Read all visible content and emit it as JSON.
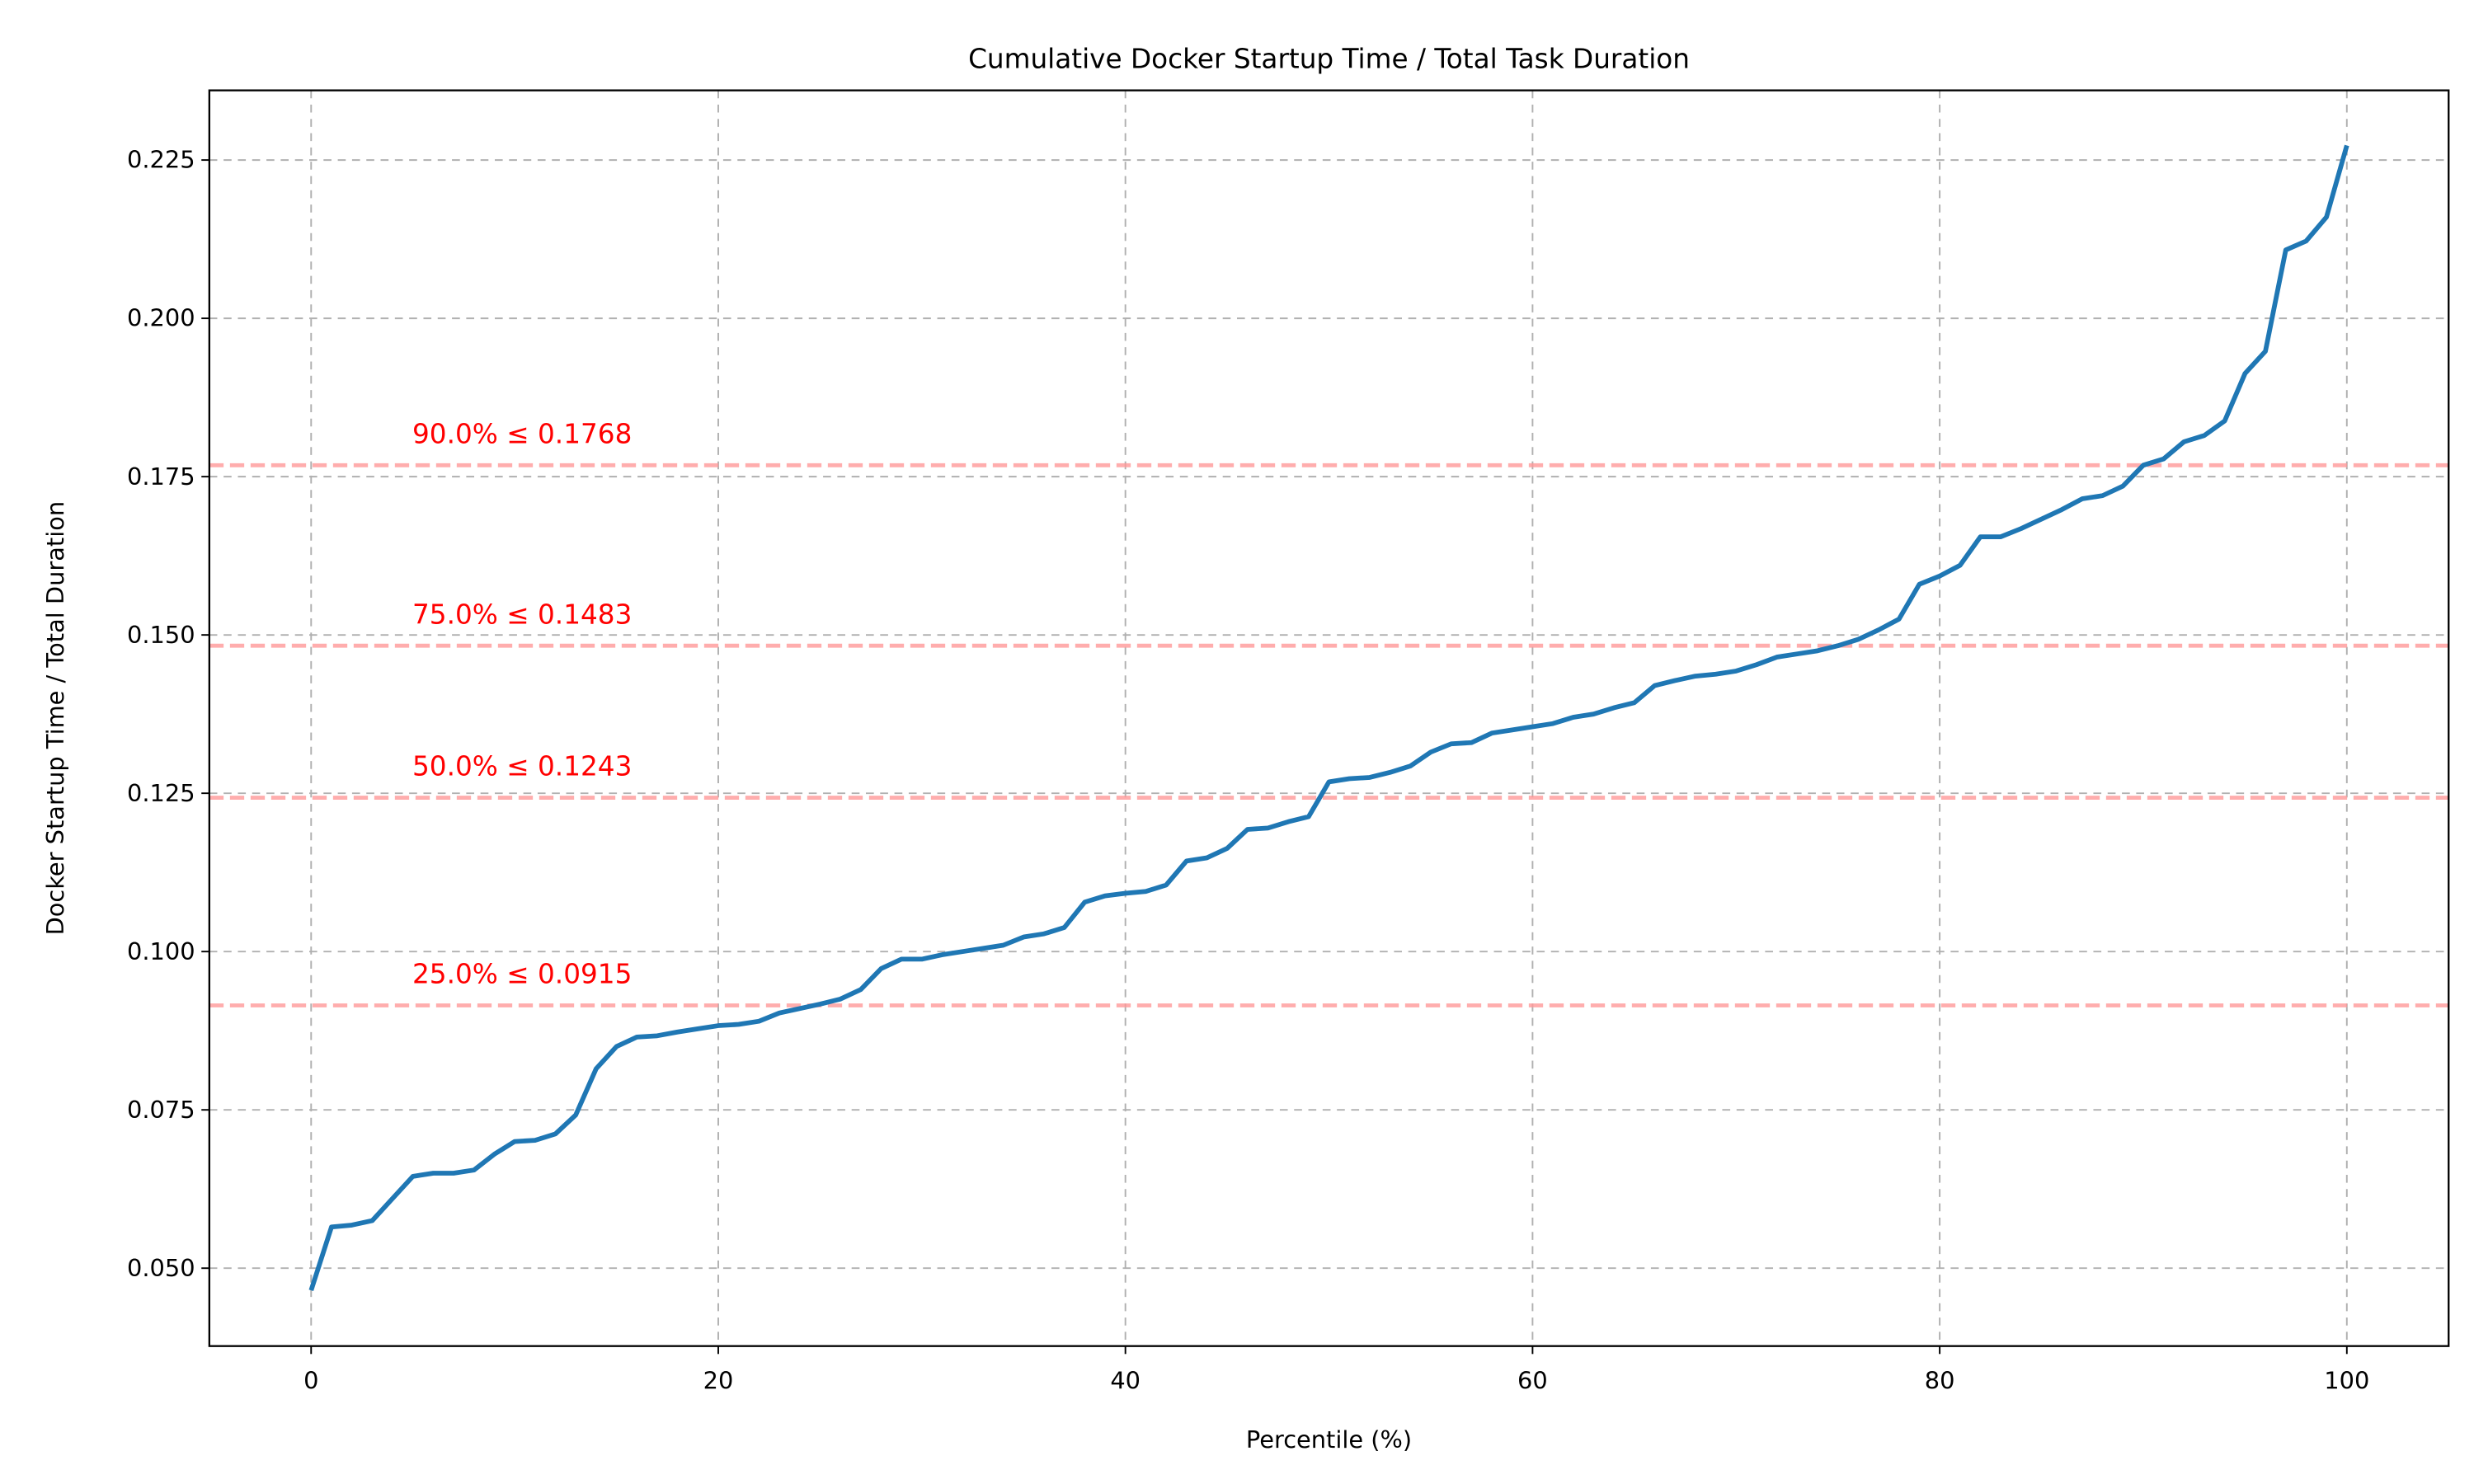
{
  "chart_data": {
    "type": "line",
    "title": "Cumulative Docker Startup Time / Total Task Duration",
    "x_label": "Percentile (%)",
    "y_label": "Docker Startup Time / Total Duration",
    "x": [
      0,
      1,
      2,
      3,
      4,
      5,
      6,
      7,
      8,
      9,
      10,
      11,
      12,
      13,
      14,
      15,
      16,
      17,
      18,
      19,
      20,
      21,
      22,
      23,
      24,
      25,
      26,
      27,
      28,
      29,
      30,
      31,
      32,
      33,
      34,
      35,
      36,
      37,
      38,
      39,
      40,
      41,
      42,
      43,
      44,
      45,
      46,
      47,
      48,
      49,
      50,
      51,
      52,
      53,
      54,
      55,
      56,
      57,
      58,
      59,
      60,
      61,
      62,
      63,
      64,
      65,
      66,
      67,
      68,
      69,
      70,
      71,
      72,
      73,
      74,
      75,
      76,
      77,
      78,
      79,
      80,
      81,
      82,
      83,
      84,
      85,
      86,
      87,
      88,
      89,
      90,
      91,
      92,
      93,
      94,
      95,
      96,
      97,
      98,
      99,
      100
    ],
    "series": [
      {
        "name": "Docker Startup Time / Total Duration",
        "color": "#1f77b4",
        "values": [
          0.0465,
          0.0565,
          0.0568,
          0.0575,
          0.061,
          0.0645,
          0.065,
          0.065,
          0.0655,
          0.068,
          0.07,
          0.0702,
          0.0712,
          0.0742,
          0.0815,
          0.085,
          0.0865,
          0.0867,
          0.0873,
          0.0878,
          0.0883,
          0.0885,
          0.089,
          0.0903,
          0.091,
          0.0917,
          0.0925,
          0.094,
          0.0973,
          0.0988,
          0.0988,
          0.0995,
          0.1,
          0.1005,
          0.101,
          0.1023,
          0.1028,
          0.1038,
          0.1078,
          0.1088,
          0.1092,
          0.1095,
          0.1105,
          0.1143,
          0.1148,
          0.1163,
          0.1193,
          0.1195,
          0.1205,
          0.1213,
          0.1268,
          0.1273,
          0.1275,
          0.1283,
          0.1293,
          0.1315,
          0.1328,
          0.133,
          0.1345,
          0.135,
          0.1355,
          0.136,
          0.137,
          0.1375,
          0.1385,
          0.1393,
          0.142,
          0.1428,
          0.1435,
          0.1438,
          0.1443,
          0.1453,
          0.1465,
          0.147,
          0.1475,
          0.1483,
          0.1493,
          0.1508,
          0.1525,
          0.158,
          0.1593,
          0.161,
          0.1655,
          0.1655,
          0.1668,
          0.1683,
          0.1698,
          0.1715,
          0.172,
          0.1735,
          0.1768,
          0.1778,
          0.1805,
          0.1815,
          0.1838,
          0.1913,
          0.1948,
          0.2108,
          0.2122,
          0.216,
          0.2273
        ]
      }
    ],
    "thresholds": [
      {
        "value": 0.0915,
        "label": "25.0% ≤ 0.0915"
      },
      {
        "value": 0.1243,
        "label": "50.0% ≤ 0.1243"
      },
      {
        "value": 0.1483,
        "label": "75.0% ≤ 0.1483"
      },
      {
        "value": 0.1768,
        "label": "90.0% ≤ 0.1768"
      }
    ],
    "threshold_color": "#ff9999",
    "xlim": [
      -5,
      105
    ],
    "xticks": [
      0,
      20,
      40,
      60,
      80,
      100
    ],
    "ylim": [
      0.0377,
      0.236
    ],
    "yticks": [
      {
        "value": 0.05,
        "label": "0.050"
      },
      {
        "value": 0.075,
        "label": "0.075"
      },
      {
        "value": 0.1,
        "label": "0.100"
      },
      {
        "value": 0.125,
        "label": "0.125"
      },
      {
        "value": 0.15,
        "label": "0.150"
      },
      {
        "value": 0.175,
        "label": "0.175"
      },
      {
        "value": 0.2,
        "label": "0.200"
      },
      {
        "value": 0.225,
        "label": "0.225"
      }
    ],
    "grid": true
  }
}
